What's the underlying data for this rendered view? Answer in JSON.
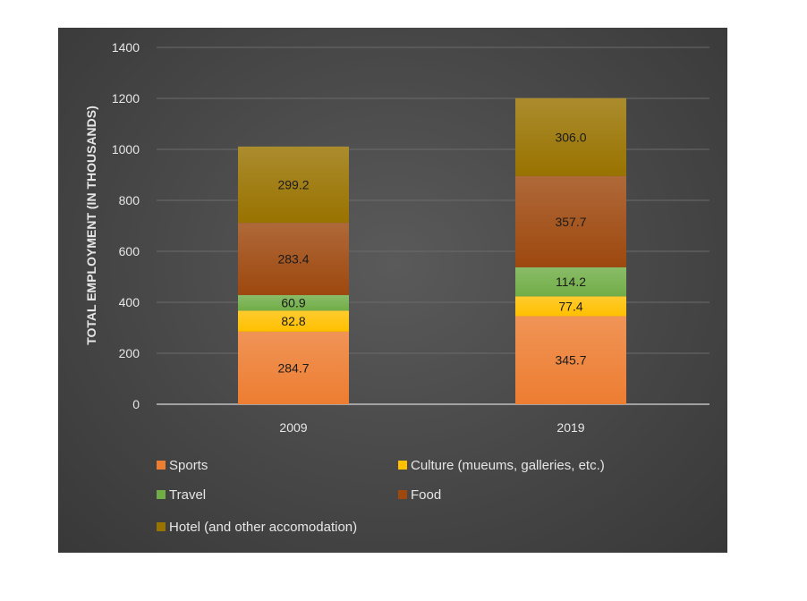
{
  "chart_data": {
    "type": "bar",
    "stacked": true,
    "title": "",
    "xlabel": "",
    "ylabel": "TOTAL EMPLOYMENT (IN THOUSANDS)",
    "categories": [
      "2009",
      "2019"
    ],
    "ylim": [
      0,
      1400
    ],
    "yticks": [
      0,
      200,
      400,
      600,
      800,
      1000,
      1200,
      1400
    ],
    "grid": true,
    "legend_position": "bottom",
    "series": [
      {
        "name": "Sports",
        "values": [
          284.7,
          345.7
        ],
        "labels": [
          "284.7",
          "345.7"
        ],
        "color": "#ED7D31"
      },
      {
        "name": "Culture (mueums, galleries, etc.)",
        "values": [
          82.8,
          77.4
        ],
        "labels": [
          "82.8",
          "77.4"
        ],
        "color": "#FFC000"
      },
      {
        "name": "Travel",
        "values": [
          60.9,
          114.2
        ],
        "labels": [
          "60.9",
          "114.2"
        ],
        "color": "#70AD47"
      },
      {
        "name": "Food",
        "values": [
          283.4,
          357.7
        ],
        "labels": [
          "283.4",
          "357.7"
        ],
        "color": "#9E480E"
      },
      {
        "name": "Hotel (and other accomodation)",
        "values": [
          299.2,
          306.0
        ],
        "labels": [
          "299.2",
          "306.0"
        ],
        "color": "#997300"
      }
    ]
  }
}
